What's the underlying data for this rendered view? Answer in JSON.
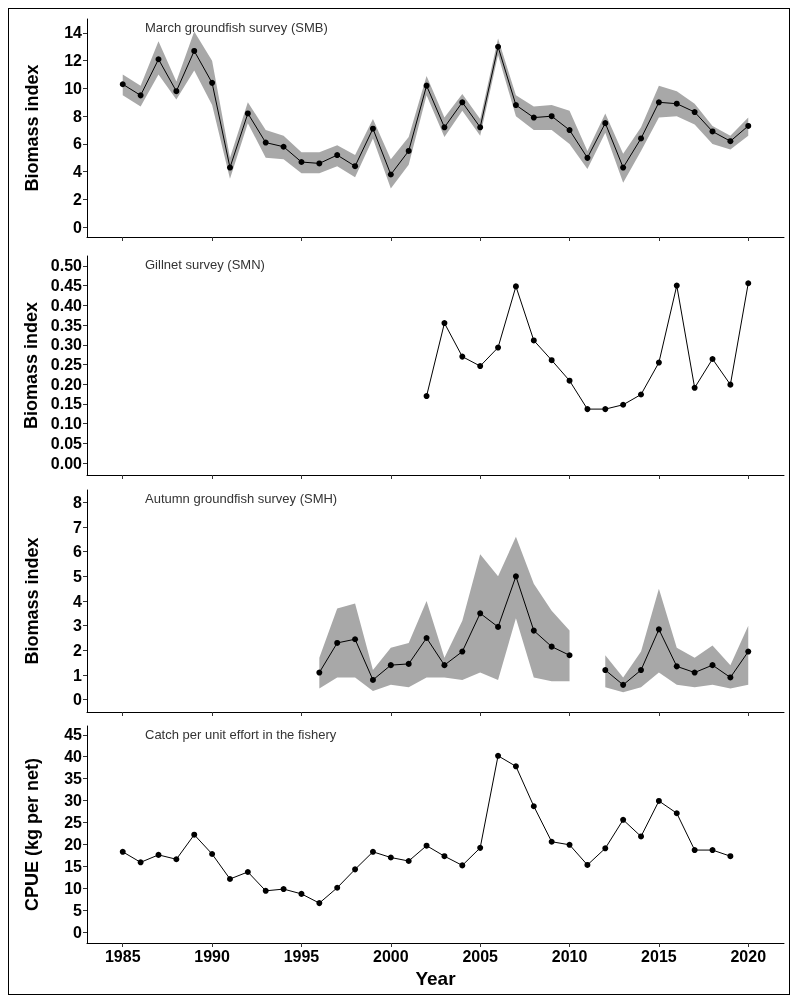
{
  "chart_data": [
    {
      "type": "line",
      "title": "March groundfish survey (SMB)",
      "ylabel": "Biomass index",
      "marker": "circle",
      "tick_labels": "y",
      "xlim": [
        1983,
        2022
      ],
      "xticks": [
        1985,
        1990,
        1995,
        2000,
        2005,
        2010,
        2015,
        2020
      ],
      "ylim": [
        -0.7,
        15
      ],
      "yticks": [
        0,
        2,
        4,
        6,
        8,
        10,
        12,
        14
      ],
      "x": [
        1985,
        1986,
        1987,
        1988,
        1989,
        1990,
        1991,
        1992,
        1993,
        1994,
        1995,
        1996,
        1997,
        1998,
        1999,
        2000,
        2001,
        2002,
        2003,
        2004,
        2005,
        2006,
        2007,
        2008,
        2009,
        2010,
        2011,
        2012,
        2013,
        2014,
        2015,
        2016,
        2017,
        2018,
        2019,
        2020
      ],
      "series": [
        {
          "color": "#000000",
          "values": [
            10.3,
            9.5,
            12.1,
            9.8,
            12.7,
            10.4,
            4.3,
            8.2,
            6.1,
            5.8,
            4.7,
            4.6,
            5.2,
            4.4,
            7.1,
            3.8,
            5.5,
            10.2,
            7.2,
            9.0,
            7.2,
            13.0,
            8.8,
            7.9,
            8.0,
            7.0,
            5.0,
            7.5,
            4.3,
            6.4,
            9.0,
            8.9,
            8.3,
            6.9,
            6.2,
            7.3
          ],
          "lower": [
            9.5,
            8.7,
            11,
            9.2,
            11.3,
            8.8,
            3.5,
            7.5,
            5,
            4.9,
            3.9,
            3.9,
            4.4,
            3.6,
            6.4,
            2.8,
            4.5,
            9.5,
            6.5,
            8.4,
            6.6,
            12.4,
            8,
            7,
            7,
            6,
            4.2,
            6.8,
            3.2,
            5.5,
            7.9,
            8,
            7.4,
            6,
            5.6,
            6.6
          ],
          "upper": [
            11,
            10.2,
            13.4,
            10.5,
            14.1,
            12,
            5,
            9,
            7,
            6.6,
            5.4,
            5.4,
            5.9,
            5.2,
            7.8,
            4.9,
            6.5,
            10.9,
            7.9,
            9.6,
            7.8,
            13.6,
            9.5,
            8.7,
            8.8,
            8.4,
            5.5,
            8.2,
            5.3,
            7.2,
            10.2,
            9.8,
            8.9,
            7.3,
            6.6,
            7.9
          ]
        }
      ]
    },
    {
      "type": "line",
      "title": "Gillnet survey (SMN)",
      "ylabel": "Biomass index",
      "marker": "circle",
      "tick_labels": "y",
      "xlim": [
        1983,
        2022
      ],
      "xticks": [
        1985,
        1990,
        1995,
        2000,
        2005,
        2010,
        2015,
        2020
      ],
      "ylim": [
        -0.03,
        0.525
      ],
      "yticks": [
        {
          "value": 0,
          "label": "0.00"
        },
        {
          "value": 0.05,
          "label": "0.05"
        },
        {
          "value": 0.1,
          "label": "0.10"
        },
        {
          "value": 0.15,
          "label": "0.15"
        },
        {
          "value": 0.2,
          "label": "0.20"
        },
        {
          "value": 0.25,
          "label": "0.25"
        },
        {
          "value": 0.3,
          "label": "0.30"
        },
        {
          "value": 0.35,
          "label": "0.35"
        },
        {
          "value": 0.4,
          "label": "0.40"
        },
        {
          "value": 0.45,
          "label": "0.45"
        },
        {
          "value": 0.5,
          "label": "0.50"
        }
      ],
      "x": [
        2002,
        2003,
        2004,
        2005,
        2006,
        2007,
        2008,
        2009,
        2010,
        2011,
        2012,
        2013,
        2014,
        2015,
        2016,
        2017,
        2018,
        2019,
        2020
      ],
      "series": [
        {
          "color": "#000000",
          "values": [
            0.17,
            0.355,
            0.27,
            0.246,
            0.293,
            0.448,
            0.311,
            0.261,
            0.209,
            0.137,
            0.137,
            0.148,
            0.174,
            0.255,
            0.45,
            0.191,
            0.264,
            0.199,
            0.456
          ]
        }
      ]
    },
    {
      "type": "line",
      "title": "Autumn groundfish survey (SMH)",
      "ylabel": "Biomass index",
      "marker": "circle",
      "tick_labels": "y",
      "xlim": [
        1983,
        2022
      ],
      "xticks": [
        1985,
        1990,
        1995,
        2000,
        2005,
        2010,
        2015,
        2020
      ],
      "ylim": [
        -0.5,
        8.5
      ],
      "yticks": [
        0,
        1,
        2,
        3,
        4,
        5,
        6,
        7,
        8
      ],
      "x": [
        1996,
        1997,
        1998,
        1999,
        2000,
        2001,
        2002,
        2003,
        2004,
        2005,
        2006,
        2007,
        2008,
        2009,
        2010,
        2011,
        2012,
        2013,
        2014,
        2015,
        2016,
        2017,
        2018,
        2019,
        2020
      ],
      "series": [
        {
          "color": "#000000",
          "values": [
            1.1,
            2.3,
            2.45,
            0.8,
            1.4,
            1.45,
            2.5,
            1.4,
            1.95,
            3.5,
            2.95,
            5.0,
            2.8,
            2.15,
            1.8,
            null,
            1.2,
            0.6,
            1.2,
            2.85,
            1.35,
            1.1,
            1.4,
            0.9,
            1.95
          ],
          "lower": [
            0.45,
            0.9,
            0.9,
            0.35,
            0.6,
            0.5,
            0.9,
            0.9,
            0.8,
            1.1,
            0.8,
            3.3,
            0.9,
            0.75,
            0.75,
            null,
            0.5,
            0.3,
            0.5,
            1.1,
            0.6,
            0.5,
            0.6,
            0.45,
            0.6
          ],
          "upper": [
            1.7,
            3.7,
            3.9,
            1.2,
            2.1,
            2.3,
            4.0,
            1.7,
            3.2,
            5.9,
            5.0,
            6.6,
            4.7,
            3.6,
            2.8,
            null,
            1.8,
            0.9,
            1.95,
            4.5,
            2.1,
            1.7,
            2.2,
            1.4,
            3.0
          ]
        }
      ]
    },
    {
      "type": "line",
      "title": "Catch per unit effort in the fishery",
      "ylabel": "CPUE (kg per net)",
      "xlabel": "Year",
      "marker": "circle",
      "xlim": [
        1983,
        2022
      ],
      "xticks": [
        1985,
        1990,
        1995,
        2000,
        2005,
        2010,
        2015,
        2020
      ],
      "ylim": [
        -2.5,
        47
      ],
      "yticks": [
        0,
        5,
        10,
        15,
        20,
        25,
        30,
        35,
        40,
        45
      ],
      "x": [
        1985,
        1986,
        1987,
        1988,
        1989,
        1990,
        1991,
        1992,
        1993,
        1994,
        1995,
        1996,
        1997,
        1998,
        1999,
        2000,
        2001,
        2002,
        2003,
        2004,
        2005,
        2006,
        2007,
        2008,
        2009,
        2010,
        2011,
        2012,
        2013,
        2014,
        2015,
        2016,
        2017,
        2018,
        2019
      ],
      "series": [
        {
          "color": "#000000",
          "values": [
            18.3,
            15.9,
            17.6,
            16.6,
            22.2,
            17.8,
            12.1,
            13.7,
            9.4,
            9.8,
            8.7,
            6.6,
            10.1,
            14.3,
            18.3,
            17.0,
            16.2,
            19.7,
            17.3,
            15.2,
            19.2,
            40.2,
            37.8,
            28.7,
            20.6,
            19.9,
            15.3,
            19.1,
            25.6,
            21.8,
            29.9,
            27.1,
            18.7,
            18.7,
            17.3
          ]
        }
      ]
    }
  ]
}
